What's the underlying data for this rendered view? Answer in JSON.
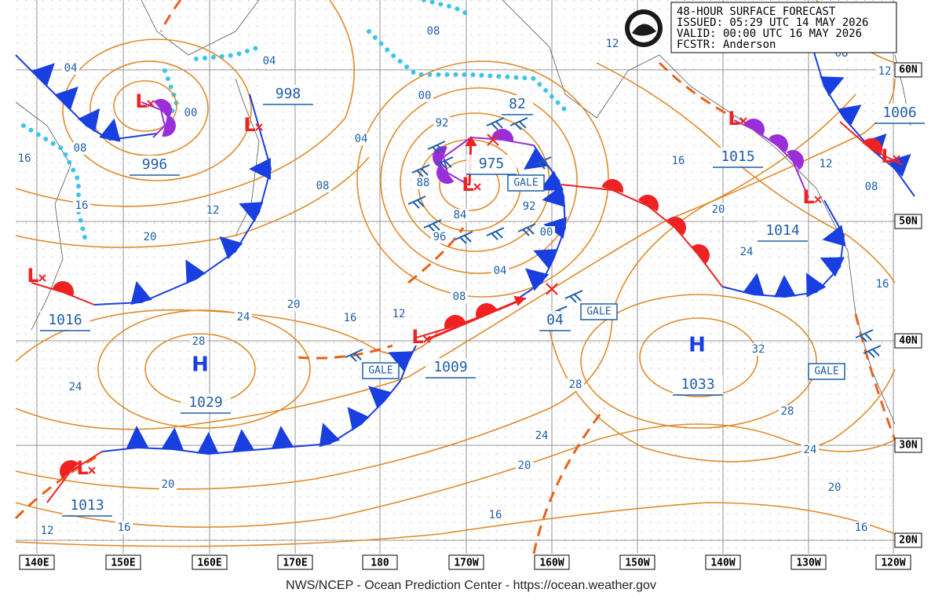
{
  "header": {
    "title": "48-HOUR SURFACE FORECAST",
    "issued": "ISSUED: 05:29 UTC 14 MAY 2026",
    "valid": "VALID:  00:00 UTC 16 MAY 2026",
    "forecaster": "FCSTR: Anderson"
  },
  "longitude_labels": [
    "140E",
    "150E",
    "160E",
    "170E",
    "180",
    "170W",
    "160W",
    "150W",
    "140W",
    "130W",
    "120W"
  ],
  "latitude_labels": [
    "60N",
    "50N",
    "40N",
    "30N",
    "20N"
  ],
  "high_centers": [
    {
      "symbol": "H",
      "pressure": "1029"
    },
    {
      "symbol": "H",
      "pressure": "1033"
    }
  ],
  "low_centers": [
    {
      "symbol": "L",
      "pressure": "996"
    },
    {
      "symbol": "L",
      "pressure": "998"
    },
    {
      "symbol": "L",
      "pressure": "1016"
    },
    {
      "symbol": "L",
      "pressure": "975"
    },
    {
      "symbol": "L",
      "pressure": "1009"
    },
    {
      "symbol": "L",
      "pressure": "1015"
    },
    {
      "symbol": "L",
      "pressure": "1014"
    },
    {
      "symbol": "L",
      "pressure": "1006"
    },
    {
      "symbol": "L",
      "pressure": "1013"
    }
  ],
  "forecast_point_pressures": [
    "82",
    "04"
  ],
  "isobar_labels": [
    "04",
    "00",
    "08",
    "16",
    "16",
    "12",
    "20",
    "08",
    "04",
    "04",
    "08",
    "00",
    "92",
    "88",
    "84",
    "96",
    "92",
    "00",
    "04",
    "08",
    "12",
    "16",
    "20",
    "24",
    "28",
    "24",
    "20",
    "16",
    "12",
    "12",
    "08",
    "12",
    "12",
    "08",
    "16",
    "20",
    "24",
    "16",
    "32",
    "28",
    "24",
    "28",
    "24",
    "20",
    "16",
    "20",
    "16"
  ],
  "gale_labels": [
    "GALE",
    "GALE",
    "GALE",
    "GALE"
  ],
  "footer": "NWS/NCEP - Ocean Prediction Center - https://ocean.weather.gov"
}
